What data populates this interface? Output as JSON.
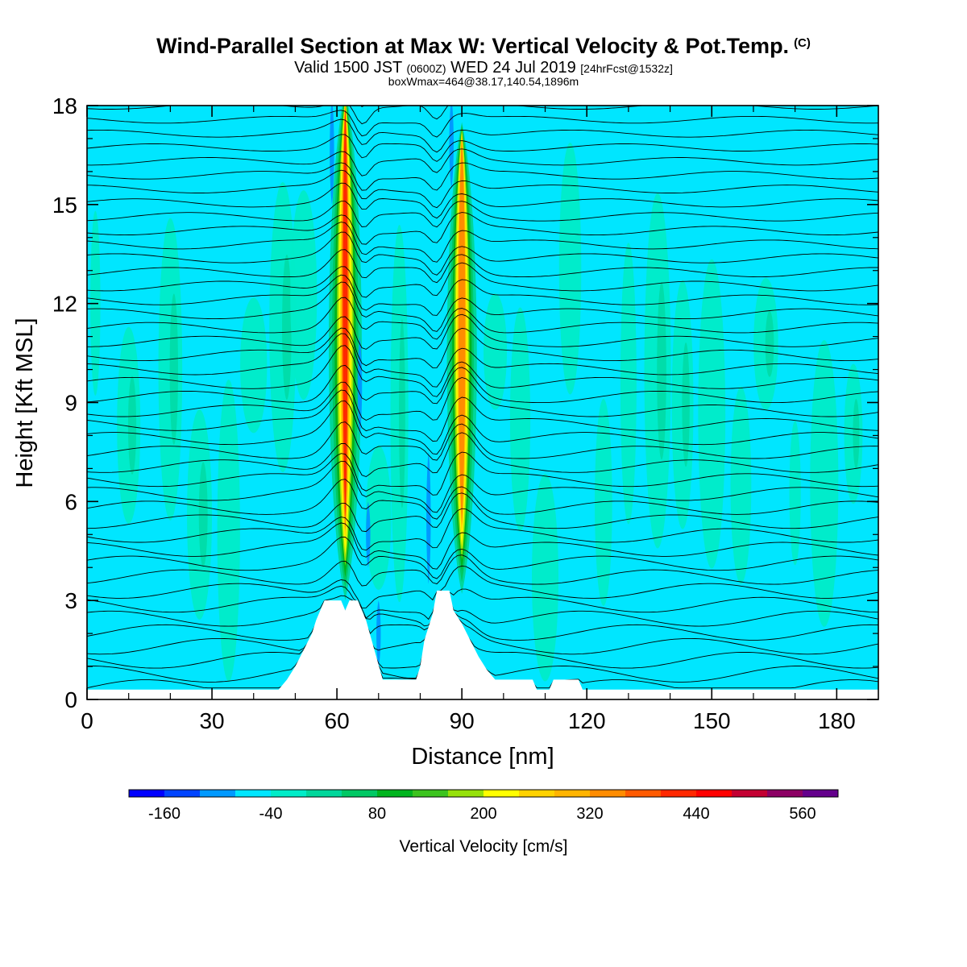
{
  "header": {
    "title": "Wind-Parallel Section at Max W: Vertical Velocity & Pot.Temp.",
    "title_mark": "(C)",
    "subtitle_valid": "Valid 1500 JST",
    "subtitle_utc": "(0600Z)",
    "subtitle_date": "WED 24 Jul 2019",
    "subtitle_fcst": "[24hrFcst@1532z]",
    "box_info": "boxWmax=464@38.17,140.54,1896m"
  },
  "chart_data": {
    "type": "heatmap",
    "title": "Wind-Parallel Section at Max W: Vertical Velocity & Pot.Temp.",
    "xlabel": "Distance [nm]",
    "ylabel": "Height [Kft MSL]",
    "xlim": [
      0,
      190
    ],
    "ylim": [
      0,
      18
    ],
    "x_ticks": [
      0,
      30,
      60,
      90,
      120,
      150,
      180
    ],
    "y_ticks": [
      0,
      3,
      6,
      9,
      12,
      15,
      18
    ],
    "grid": false,
    "fill_field": "Vertical Velocity [cm/s]",
    "contour_field": "Potential Temperature",
    "background_value": 0,
    "plumes": [
      {
        "name": "updraft-west",
        "x_center": 62,
        "x_halfwidth": 2.2,
        "y_base": 3,
        "y_top": 18,
        "peak_wmax": 480
      },
      {
        "name": "updraft-east",
        "x_center": 90,
        "x_halfwidth": 2.0,
        "y_base": 3.2,
        "y_top": 17,
        "peak_wmax": 420
      }
    ],
    "terrain_kft": [
      [
        0,
        0.3
      ],
      [
        46,
        0.3
      ],
      [
        48,
        0.6
      ],
      [
        50,
        1.0
      ],
      [
        52,
        1.5
      ],
      [
        54,
        2.0
      ],
      [
        55,
        2.4
      ],
      [
        56,
        2.7
      ],
      [
        57,
        3.0
      ],
      [
        61,
        3.0
      ],
      [
        62,
        2.7
      ],
      [
        63,
        3.0
      ],
      [
        65,
        3.0
      ],
      [
        67,
        2.4
      ],
      [
        69,
        1.5
      ],
      [
        71,
        0.6
      ],
      [
        79,
        0.6
      ],
      [
        80,
        1.0
      ],
      [
        81,
        1.8
      ],
      [
        83,
        2.6
      ],
      [
        84,
        3.3
      ],
      [
        87,
        3.3
      ],
      [
        88,
        2.7
      ],
      [
        90,
        2.3
      ],
      [
        92,
        1.8
      ],
      [
        94,
        1.3
      ],
      [
        96,
        0.9
      ],
      [
        98,
        0.6
      ],
      [
        107,
        0.6
      ],
      [
        108,
        0.3
      ],
      [
        111,
        0.3
      ],
      [
        112,
        0.6
      ],
      [
        118,
        0.6
      ],
      [
        119,
        0.3
      ],
      [
        190,
        0.3
      ]
    ],
    "colorbar": {
      "label": "Vertical Velocity [cm/s]",
      "tick_labels": [
        "-160",
        "-40",
        "80",
        "200",
        "320",
        "440",
        "560"
      ],
      "tick_values": [
        -160,
        -40,
        80,
        200,
        320,
        440,
        560
      ],
      "colors": [
        "#0000ff",
        "#0044ff",
        "#0099ff",
        "#00e6ff",
        "#00ecc8",
        "#00d79b",
        "#00c864",
        "#00b41e",
        "#3cc31e",
        "#96e10a",
        "#ffff00",
        "#ffd200",
        "#ffb400",
        "#ff8c00",
        "#ff5a00",
        "#ff2800",
        "#ff0000",
        "#c30032",
        "#8c0064",
        "#64008c"
      ]
    }
  }
}
